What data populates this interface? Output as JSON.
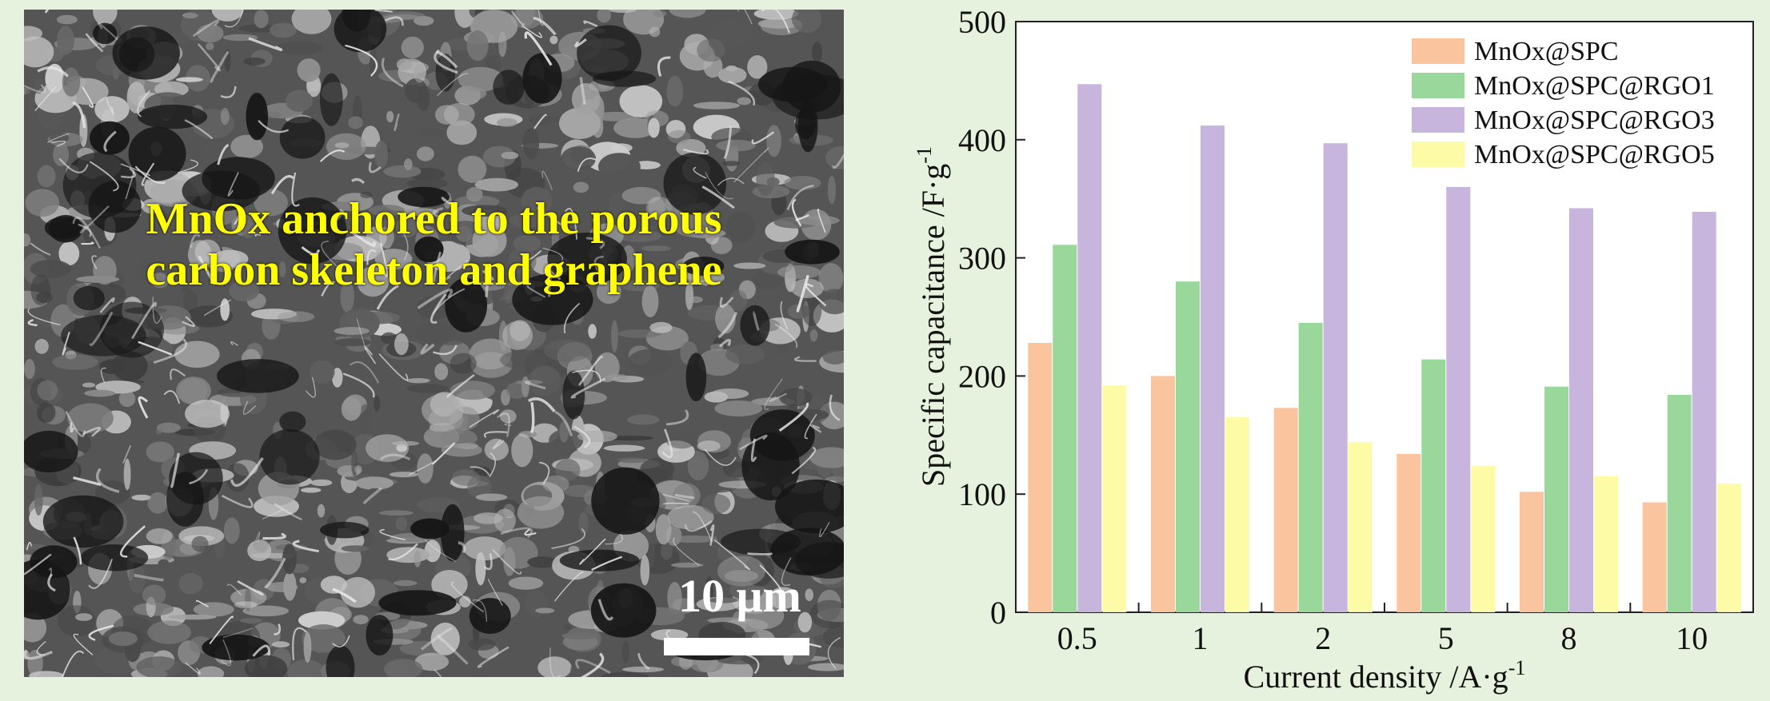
{
  "sem_image": {
    "caption_lines": [
      "MnOx anchored to the porous",
      "carbon skeleton and graphene"
    ],
    "scale_bar_label": "10 μm"
  },
  "chart_data": {
    "type": "bar",
    "categories": [
      "0.5",
      "1",
      "2",
      "5",
      "8",
      "10"
    ],
    "series": [
      {
        "name": "MnOx@SPC",
        "color": "#f9c49e",
        "values": [
          228,
          200,
          173,
          134,
          102,
          93
        ]
      },
      {
        "name": "MnOx@SPC@RGO1",
        "color": "#9ad79b",
        "values": [
          311,
          280,
          245,
          214,
          191,
          184
        ]
      },
      {
        "name": "MnOx@SPC@RGO3",
        "color": "#c8b5de",
        "values": [
          447,
          412,
          397,
          360,
          342,
          339
        ]
      },
      {
        "name": "MnOx@SPC@RGO5",
        "color": "#fdfba6",
        "values": [
          192,
          165,
          144,
          124,
          115,
          109
        ]
      }
    ],
    "xlabel": {
      "text": "Current density /A·g",
      "sup": "-1"
    },
    "ylabel": {
      "text": "Specific capacitance /F·g",
      "sup": "-1"
    },
    "ylim": [
      0,
      500
    ],
    "yticks": [
      "0",
      "100",
      "200",
      "300",
      "400",
      "500"
    ],
    "grid": false,
    "legend_position": "top-right"
  }
}
